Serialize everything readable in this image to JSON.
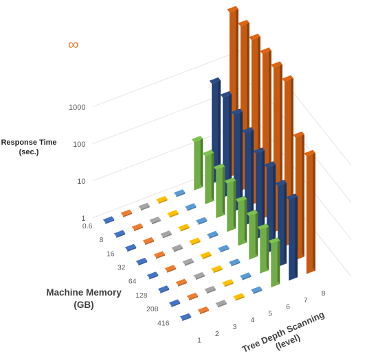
{
  "chart_data": {
    "type": "bar",
    "subtype": "3d-column",
    "z_axis": {
      "title_line1": "Response Time",
      "title_line2": "(sec.)",
      "scale": "log",
      "ticks": [
        "1",
        "10",
        "100",
        "1000",
        "∞"
      ]
    },
    "y_axis": {
      "title_line1": "Machine Memory",
      "title_line2": "(GB)",
      "categories": [
        "0.6",
        "8",
        "16",
        "32",
        "64",
        "128",
        "208",
        "416"
      ]
    },
    "x_axis": {
      "title_line1": "Tree Depth Scanning",
      "title_line2": "(level)",
      "categories": [
        "1",
        "2",
        "3",
        "4",
        "5",
        "6",
        "7",
        "8"
      ]
    },
    "series_colors": {
      "1": "#4472c4",
      "2": "#ed7d31",
      "3": "#a5a5a5",
      "4": "#ffc000",
      "5": "#5b9bd5",
      "6": "#70ad47",
      "7": "#264478",
      "8": "#c55a11"
    },
    "infinity_color": "#ed7d31",
    "values": {
      "note_levels": "values[level_index][memory_index]; 'inf' = did not finish",
      "1": [
        1,
        1,
        1,
        1,
        1,
        1,
        1,
        1
      ],
      "2": [
        1,
        1,
        1,
        1,
        1,
        1,
        1,
        1
      ],
      "3": [
        1,
        1,
        1,
        1,
        1,
        1,
        1,
        1
      ],
      "4": [
        1,
        1,
        1,
        1,
        1,
        1,
        1,
        1
      ],
      "5": [
        1,
        1,
        1,
        1,
        1,
        1,
        1,
        1
      ],
      "6": [
        20,
        20,
        20,
        20,
        15,
        15,
        15,
        15
      ],
      "7": [
        500,
        500,
        400,
        300,
        200,
        200,
        150,
        150
      ],
      "8": [
        "inf",
        "inf",
        "inf",
        "inf",
        "inf",
        "inf",
        2000,
        1500
      ]
    }
  }
}
